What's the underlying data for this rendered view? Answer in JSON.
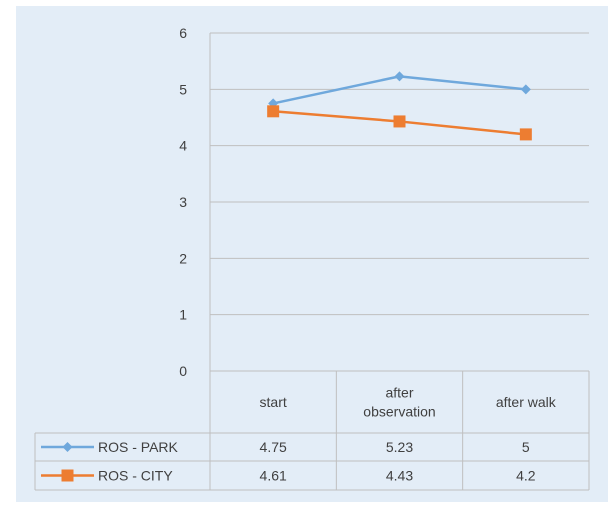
{
  "chart_data": {
    "type": "line",
    "title": "",
    "xlabel": "",
    "ylabel": "",
    "ylim": [
      0,
      6
    ],
    "yticks": [
      "0",
      "1",
      "2",
      "3",
      "4",
      "5",
      "6"
    ],
    "grid": true,
    "legend": "data-table-left",
    "categories": [
      {
        "lines": [
          "start"
        ]
      },
      {
        "lines": [
          "after",
          "observation"
        ]
      },
      {
        "lines": [
          "after walk"
        ]
      }
    ],
    "series": [
      {
        "name": "ROS - PARK",
        "values": [
          4.75,
          5.23,
          5
        ],
        "labels": [
          "4.75",
          "5.23",
          "5"
        ],
        "color": "#6fa8dc",
        "marker": "diamond"
      },
      {
        "name": "ROS - CITY",
        "values": [
          4.61,
          4.43,
          4.2
        ],
        "labels": [
          "4.61",
          "4.43",
          "4.2"
        ],
        "color": "#ed7d31",
        "marker": "square"
      }
    ]
  }
}
